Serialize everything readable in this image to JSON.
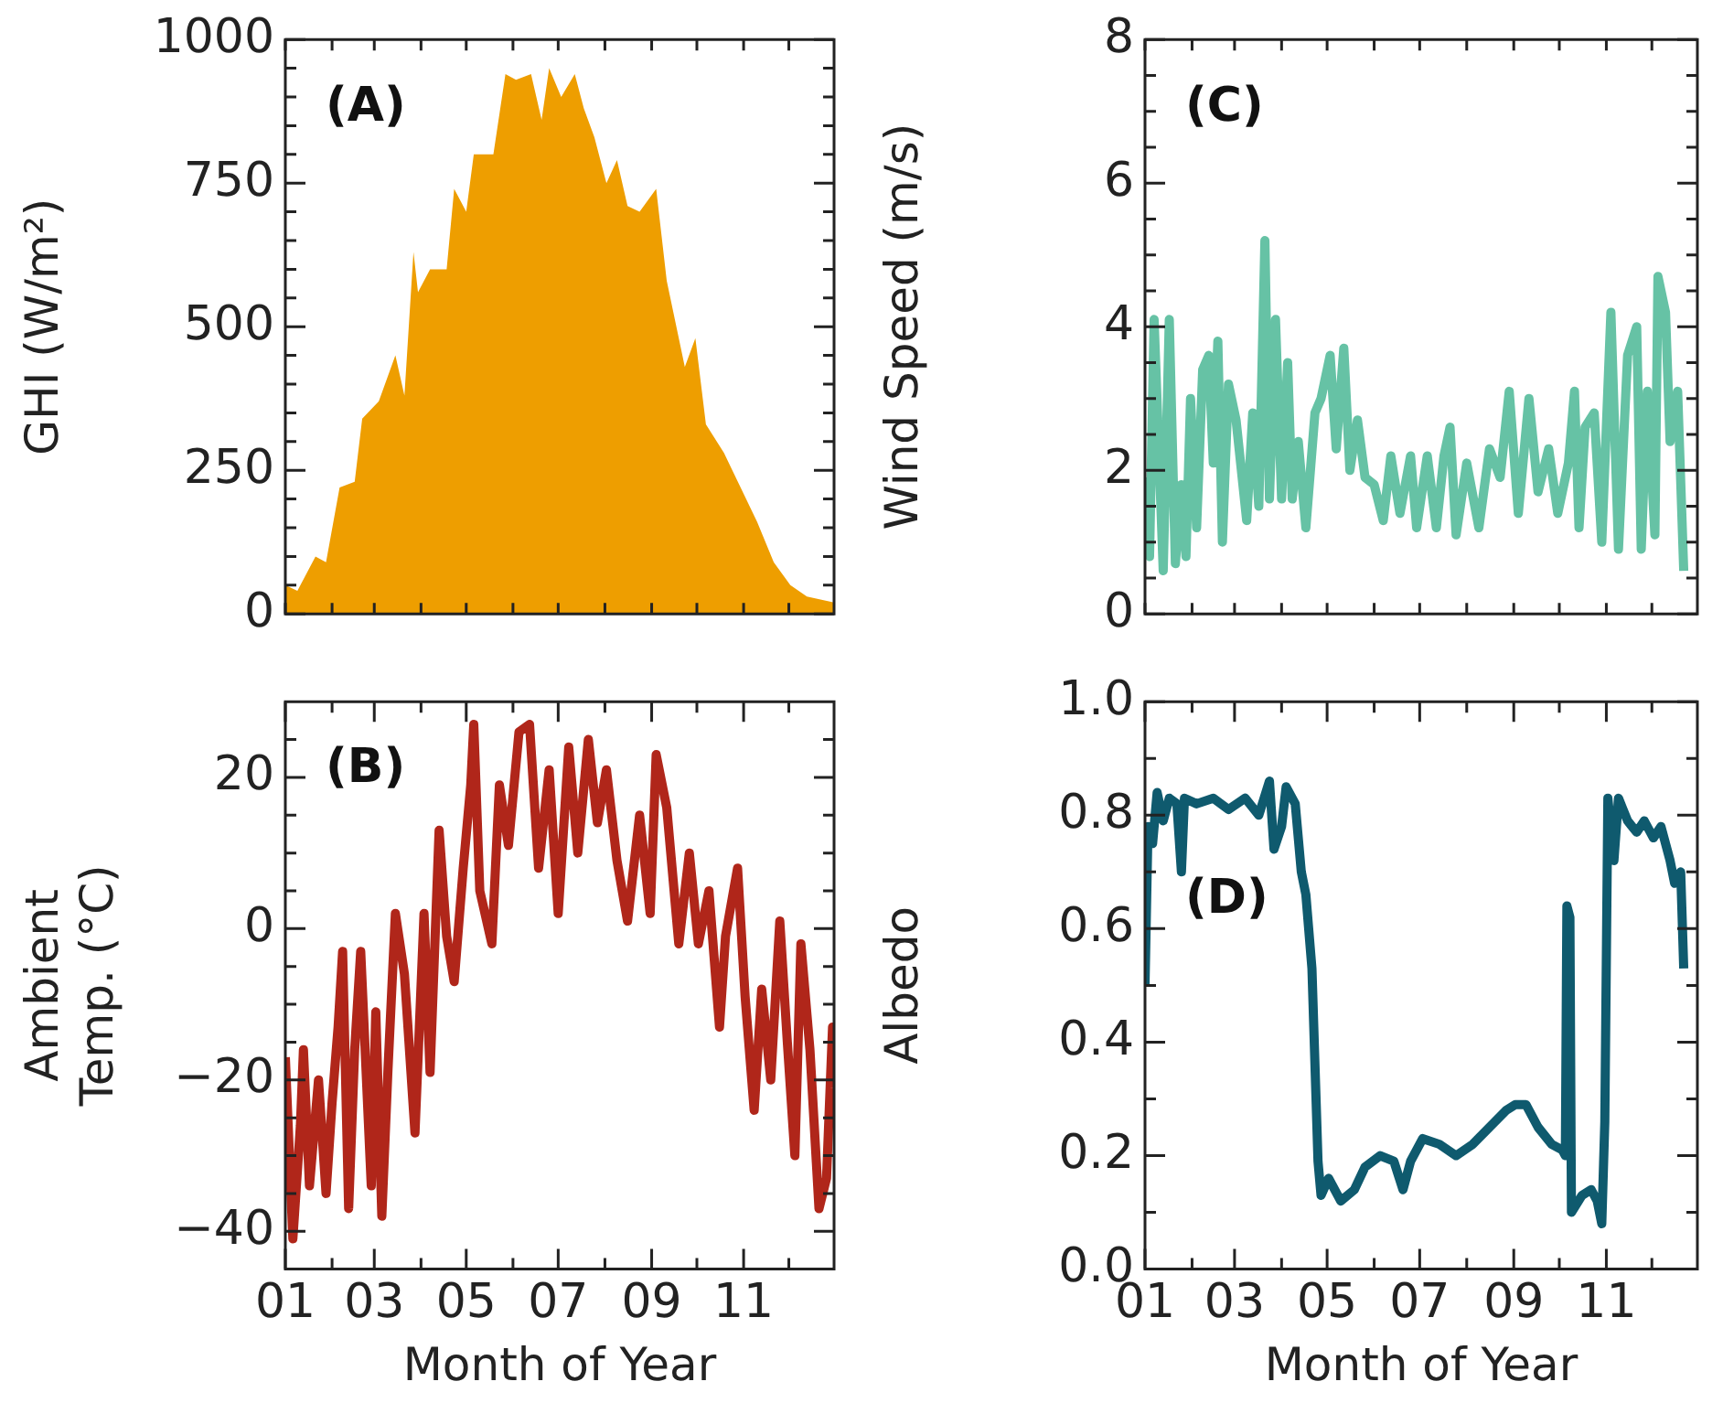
{
  "chart_data": [
    {
      "type": "area",
      "ylabel": "GHI (W/m²)",
      "annotations": [
        "(A)"
      ],
      "color": "#ee9e00",
      "tick_labels": "y",
      "x": [
        "--01-01",
        "--01-09",
        "--01-21",
        "--01-28",
        "--02-06",
        "--02-16",
        "--02-21",
        "--03-04",
        "--03-15",
        "--03-21",
        "--03-27",
        "--03-30",
        "--04-07",
        "--04-18",
        "--04-23",
        "--05-01",
        "--05-06",
        "--05-19",
        "--05-27",
        "--06-03",
        "--06-13",
        "--06-20",
        "--06-25",
        "--07-03",
        "--07-12",
        "--07-18",
        "--07-25",
        "--08-02",
        "--08-09",
        "--08-16",
        "--08-24",
        "--09-04",
        "--09-11",
        "--09-23",
        "--09-30",
        "--10-07",
        "--10-19",
        "--10-30",
        "--11-10",
        "--11-21",
        "--12-02",
        "--12-13",
        "--12-31"
      ],
      "values": [
        50,
        40,
        100,
        90,
        220,
        230,
        340,
        370,
        450,
        380,
        630,
        560,
        600,
        600,
        740,
        700,
        800,
        800,
        940,
        930,
        940,
        860,
        950,
        900,
        940,
        880,
        830,
        750,
        790,
        710,
        700,
        740,
        580,
        430,
        480,
        330,
        280,
        220,
        160,
        90,
        50,
        30,
        20
      ],
      "xlim": [
        "--01-01",
        "--12-31"
      ],
      "ylim": [
        0,
        1000
      ],
      "xticks": [
        {
          "value": "--01-01",
          "label": null
        },
        {
          "value": "--02-01",
          "label": null
        },
        {
          "value": "--03-01",
          "label": null
        },
        {
          "value": "--04-01",
          "label": null
        },
        {
          "value": "--05-01",
          "label": null
        },
        {
          "value": "--06-01",
          "label": null
        },
        {
          "value": "--07-01",
          "label": null
        },
        {
          "value": "--08-01",
          "label": null
        },
        {
          "value": "--09-01",
          "label": null
        },
        {
          "value": "--10-01",
          "label": null
        },
        {
          "value": "--11-01",
          "label": null
        },
        {
          "value": "--12-01",
          "label": null
        }
      ],
      "yticks": [
        0,
        {
          "value": 50,
          "label": null
        },
        {
          "value": 100,
          "label": null
        },
        {
          "value": 150,
          "label": null
        },
        {
          "value": 200,
          "label": null
        },
        250,
        {
          "value": 300,
          "label": null
        },
        {
          "value": 350,
          "label": null
        },
        {
          "value": 400,
          "label": null
        },
        {
          "value": 450,
          "label": null
        },
        500,
        {
          "value": 550,
          "label": null
        },
        {
          "value": 600,
          "label": null
        },
        {
          "value": 650,
          "label": null
        },
        {
          "value": 700,
          "label": null
        },
        750,
        {
          "value": 800,
          "label": null
        },
        {
          "value": 850,
          "label": null
        },
        {
          "value": 900,
          "label": null
        },
        {
          "value": 950,
          "label": null
        },
        1000
      ]
    },
    {
      "type": "line",
      "ylabel": "Wind Speed (m/s)",
      "annotations": [
        "(C)"
      ],
      "color": "#66c2a5",
      "tick_labels": "y",
      "x": [
        "--01-01",
        "--01-04",
        "--01-07",
        "--01-13",
        "--01-17",
        "--01-21",
        "--01-25",
        "--01-28",
        "--01-31",
        "--02-04",
        "--02-08",
        "--02-12",
        "--02-15",
        "--02-18",
        "--02-21",
        "--02-25",
        "--03-02",
        "--03-09",
        "--03-13",
        "--03-17",
        "--03-21",
        "--03-24",
        "--03-28",
        "--04-01",
        "--04-05",
        "--04-08",
        "--04-12",
        "--04-17",
        "--04-23",
        "--04-27",
        "--05-03",
        "--05-07",
        "--05-12",
        "--05-16",
        "--05-21",
        "--05-26",
        "--06-01",
        "--06-07",
        "--06-12",
        "--06-18",
        "--06-25",
        "--06-29",
        "--07-06",
        "--07-12",
        "--07-17",
        "--07-21",
        "--07-25",
        "--08-01",
        "--08-09",
        "--08-16",
        "--08-23",
        "--08-29",
        "--09-04",
        "--09-11",
        "--09-17",
        "--09-24",
        "--09-30",
        "--10-07",
        "--10-11",
        "--10-14",
        "--10-18",
        "--10-24",
        "--10-29",
        "--11-04",
        "--11-09",
        "--11-15",
        "--11-21",
        "--11-24",
        "--11-28",
        "--12-03",
        "--12-05",
        "--12-10",
        "--12-13",
        "--12-18",
        "--12-22"
      ],
      "values": [
        1.9,
        0.8,
        4.1,
        0.6,
        4.1,
        0.7,
        1.8,
        0.8,
        3.0,
        1.2,
        3.4,
        3.6,
        2.1,
        3.8,
        1.0,
        3.2,
        2.7,
        1.3,
        2.8,
        1.5,
        5.2,
        1.6,
        4.1,
        1.6,
        3.5,
        1.6,
        2.4,
        1.2,
        2.8,
        3.0,
        3.6,
        2.3,
        3.7,
        2.0,
        2.7,
        1.9,
        1.8,
        1.3,
        2.2,
        1.4,
        2.2,
        1.2,
        2.2,
        1.2,
        2.2,
        2.6,
        1.1,
        2.1,
        1.2,
        2.3,
        1.9,
        3.1,
        1.4,
        3.0,
        1.7,
        2.3,
        1.4,
        2.1,
        3.1,
        1.2,
        2.6,
        2.8,
        1.0,
        4.2,
        0.9,
        3.6,
        4.0,
        0.9,
        3.1,
        1.1,
        4.7,
        4.2,
        2.4,
        3.1,
        0.6
      ],
      "xlim": [
        "--01-01",
        "--12-31"
      ],
      "ylim": [
        0,
        8
      ],
      "xticks": [
        {
          "value": "--01-01",
          "label": null
        },
        {
          "value": "--02-01",
          "label": null
        },
        {
          "value": "--03-01",
          "label": null
        },
        {
          "value": "--04-01",
          "label": null
        },
        {
          "value": "--05-01",
          "label": null
        },
        {
          "value": "--06-01",
          "label": null
        },
        {
          "value": "--07-01",
          "label": null
        },
        {
          "value": "--08-01",
          "label": null
        },
        {
          "value": "--09-01",
          "label": null
        },
        {
          "value": "--10-01",
          "label": null
        },
        {
          "value": "--11-01",
          "label": null
        },
        {
          "value": "--12-01",
          "label": null
        }
      ],
      "yticks": [
        0,
        {
          "value": 0.5,
          "label": null
        },
        {
          "value": 1,
          "label": null
        },
        {
          "value": 1.5,
          "label": null
        },
        2,
        {
          "value": 2.5,
          "label": null
        },
        {
          "value": 3,
          "label": null
        },
        {
          "value": 3.5,
          "label": null
        },
        4,
        {
          "value": 4.5,
          "label": null
        },
        {
          "value": 5,
          "label": null
        },
        {
          "value": 5.5,
          "label": null
        },
        6,
        {
          "value": 6.5,
          "label": null
        },
        {
          "value": 7,
          "label": null
        },
        {
          "value": 7.5,
          "label": null
        },
        8
      ]
    },
    {
      "type": "line",
      "ylabel": "Ambient\nTemp. (°C)",
      "xlabel": "Month of Year",
      "annotations": [
        "(B)"
      ],
      "color": "#b0261a",
      "x": [
        "--01-01",
        "--01-06",
        "--01-11",
        "--01-13",
        "--01-17",
        "--01-23",
        "--01-28",
        "--02-01",
        "--02-05",
        "--02-08",
        "--02-12",
        "--02-16",
        "--02-20",
        "--02-27",
        "--03-02",
        "--03-06",
        "--03-10",
        "--03-15",
        "--03-21",
        "--03-28",
        "--04-03",
        "--04-07",
        "--04-13",
        "--04-18",
        "--04-23",
        "--04-29",
        "--05-04",
        "--05-06",
        "--05-10",
        "--05-18",
        "--05-23",
        "--05-29",
        "--06-05",
        "--06-12",
        "--06-18",
        "--06-25",
        "--07-01",
        "--07-08",
        "--07-14",
        "--07-21",
        "--07-27",
        "--08-02",
        "--08-09",
        "--08-16",
        "--08-24",
        "--08-31",
        "--09-04",
        "--09-11",
        "--09-19",
        "--09-26",
        "--10-02",
        "--10-09",
        "--10-16",
        "--10-20",
        "--10-28",
        "--11-02",
        "--11-08",
        "--11-13",
        "--11-19",
        "--11-25",
        "--11-30",
        "--12-05",
        "--12-09",
        "--12-15",
        "--12-21",
        "--12-26",
        "--12-30",
        "--12-31"
      ],
      "values": [
        -17,
        -41,
        -26,
        -16,
        -34,
        -20,
        -35,
        -23,
        -13,
        -3,
        -37,
        -16,
        -3,
        -34,
        -11,
        -38,
        -19,
        2,
        -6,
        -27,
        2,
        -19,
        13,
        -1,
        -7,
        8,
        19,
        27,
        5,
        -2,
        19,
        11,
        26,
        27,
        8,
        21,
        2,
        24,
        10,
        25,
        14,
        21,
        9,
        1,
        15,
        2,
        23,
        16,
        -2,
        10,
        -2,
        5,
        -13,
        -1,
        8,
        -9,
        -24,
        -8,
        -20,
        1,
        -15,
        -30,
        -2,
        -16,
        -37,
        -33,
        -13,
        -21
      ],
      "xlim": [
        "--01-01",
        "--12-31"
      ],
      "ylim": [
        -45,
        30
      ],
      "xticks": [
        {
          "value": "--01-01",
          "label": "01"
        },
        {
          "value": "--02-01",
          "label": null
        },
        {
          "value": "--03-01",
          "label": "03"
        },
        {
          "value": "--04-01",
          "label": null
        },
        {
          "value": "--05-01",
          "label": "05"
        },
        {
          "value": "--06-01",
          "label": null
        },
        {
          "value": "--07-01",
          "label": "07"
        },
        {
          "value": "--08-01",
          "label": null
        },
        {
          "value": "--09-01",
          "label": "09"
        },
        {
          "value": "--10-01",
          "label": null
        },
        {
          "value": "--11-01",
          "label": "11"
        },
        {
          "value": "--12-01",
          "label": null
        }
      ],
      "yticks": [
        -40,
        {
          "value": -35,
          "label": null
        },
        {
          "value": -30,
          "label": null
        },
        {
          "value": -25,
          "label": null
        },
        -20,
        {
          "value": -15,
          "label": null
        },
        {
          "value": -10,
          "label": null
        },
        {
          "value": -5,
          "label": null
        },
        0,
        {
          "value": 5,
          "label": null
        },
        {
          "value": 10,
          "label": null
        },
        {
          "value": 15,
          "label": null
        },
        20,
        {
          "value": 25,
          "label": null
        }
      ]
    },
    {
      "type": "line",
      "ylabel": "Albedo",
      "xlabel": "Month of Year",
      "annotations": [
        "(D)"
      ],
      "color": "#0f5a6e",
      "x": [
        "--01-01",
        "--01-03",
        "--01-06",
        "--01-09",
        "--01-13",
        "--01-17",
        "--01-22",
        "--01-25",
        "--01-27",
        "--02-04",
        "--02-15",
        "--02-25",
        "--03-08",
        "--03-17",
        "--03-24",
        "--03-27",
        "--04-01",
        "--04-04",
        "--04-10",
        "--04-14",
        "--04-17",
        "--04-21",
        "--04-25",
        "--04-27",
        "--05-02",
        "--05-10",
        "--05-19",
        "--05-26",
        "--06-05",
        "--06-14",
        "--06-20",
        "--06-25",
        "--07-03",
        "--07-14",
        "--07-25",
        "--08-05",
        "--08-16",
        "--08-27",
        "--09-02",
        "--09-09",
        "--09-17",
        "--09-26",
        "--10-03",
        "--10-05",
        "--10-06",
        "--10-08",
        "--10-09",
        "--10-16",
        "--10-22",
        "--10-26",
        "--10-29",
        "--10-31",
        "--11-02",
        "--11-06",
        "--11-09",
        "--11-15",
        "--11-21",
        "--11-26",
        "--12-02",
        "--12-07",
        "--12-13",
        "--12-16",
        "--12-20",
        "--12-22"
      ],
      "values": [
        0.5,
        0.78,
        0.75,
        0.84,
        0.79,
        0.83,
        0.82,
        0.7,
        0.83,
        0.82,
        0.83,
        0.81,
        0.83,
        0.8,
        0.86,
        0.74,
        0.78,
        0.85,
        0.82,
        0.7,
        0.66,
        0.53,
        0.19,
        0.13,
        0.16,
        0.12,
        0.14,
        0.18,
        0.2,
        0.19,
        0.14,
        0.19,
        0.23,
        0.22,
        0.2,
        0.22,
        0.25,
        0.28,
        0.29,
        0.29,
        0.25,
        0.22,
        0.21,
        0.2,
        0.64,
        0.62,
        0.1,
        0.13,
        0.14,
        0.12,
        0.08,
        0.26,
        0.83,
        0.72,
        0.83,
        0.79,
        0.77,
        0.79,
        0.76,
        0.78,
        0.72,
        0.68,
        0.7,
        0.53
      ],
      "xlim": [
        "--01-01",
        "--12-31"
      ],
      "ylim": [
        0,
        1
      ],
      "xticks": [
        {
          "value": "--01-01",
          "label": "01"
        },
        {
          "value": "--02-01",
          "label": null
        },
        {
          "value": "--03-01",
          "label": "03"
        },
        {
          "value": "--04-01",
          "label": null
        },
        {
          "value": "--05-01",
          "label": "05"
        },
        {
          "value": "--06-01",
          "label": null
        },
        {
          "value": "--07-01",
          "label": "07"
        },
        {
          "value": "--08-01",
          "label": null
        },
        {
          "value": "--09-01",
          "label": "09"
        },
        {
          "value": "--10-01",
          "label": null
        },
        {
          "value": "--11-01",
          "label": "11"
        },
        {
          "value": "--12-01",
          "label": null
        }
      ],
      "yticks": [
        {
          "value": 0,
          "label": "0.0"
        },
        {
          "value": 0.1,
          "label": null
        },
        0.2,
        {
          "value": 0.3,
          "label": null
        },
        0.4,
        {
          "value": 0.5,
          "label": null
        },
        0.6,
        {
          "value": 0.7,
          "label": null
        },
        0.8,
        {
          "value": 0.9,
          "label": null
        },
        {
          "value": 1,
          "label": "1.0"
        }
      ]
    }
  ]
}
